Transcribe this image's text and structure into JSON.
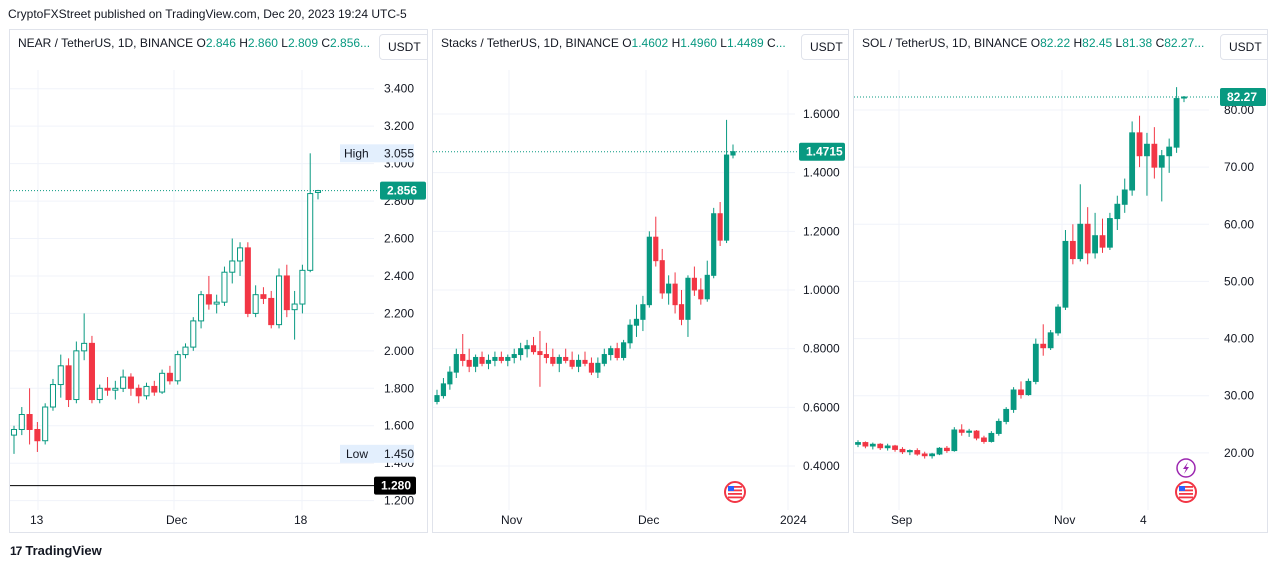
{
  "publisher": "CryptoFXStreet published on TradingView.com, Dec 20, 2023 19:24 UTC-5",
  "brand": "TradingView",
  "colors": {
    "up": "#089981",
    "down": "#f23645",
    "grid": "#f0f3fa",
    "axis_text": "#131722"
  },
  "panels": [
    {
      "legend": {
        "symbol": "NEAR / TetherUS, 1D, BINANCE",
        "o_label": "O",
        "o": "2.846",
        "h_label": "H",
        "h": "2.860",
        "l_label": "L",
        "l": "2.809",
        "c_label": "C",
        "c": "2.856..."
      },
      "currency": "USDT",
      "high_label": "High",
      "high_value": "3.055",
      "low_label": "Low",
      "low_value": "1.450",
      "last_price": "2.856",
      "hline_price": "1.280",
      "x_ticks": [
        "13",
        "Dec",
        "18"
      ],
      "icons": []
    },
    {
      "legend": {
        "symbol": "Stacks / TetherUS, 1D, BINANCE",
        "o_label": "O",
        "o": "1.4602",
        "h_label": "H",
        "h": "1.4960",
        "l_label": "L",
        "l": "1.4489",
        "c_label": "C",
        "c": "..."
      },
      "currency": "USDT",
      "last_price": "1.4715",
      "x_ticks": [
        "Nov",
        "Dec",
        "2024"
      ],
      "icons": [
        "us-flag-icon"
      ]
    },
    {
      "legend": {
        "symbol": "SOL / TetherUS, 1D, BINANCE",
        "o_label": "O",
        "o": "82.22",
        "h_label": "H",
        "h": "82.45",
        "l_label": "L",
        "l": "81.38",
        "c_label": "C",
        "c": "82.27..."
      },
      "currency": "USDT",
      "last_price": "82.27",
      "x_ticks": [
        "Sep",
        "Nov",
        "4"
      ],
      "icons": [
        "lightning-icon",
        "us-flag-icon"
      ]
    }
  ],
  "chart_data": [
    {
      "type": "candlestick",
      "title": "NEAR / TetherUS, 1D, BINANCE",
      "ylim": [
        1.15,
        3.5
      ],
      "y_ticks": [
        1.2,
        1.4,
        1.6,
        1.8,
        2.0,
        2.2,
        2.4,
        2.6,
        2.8,
        3.0,
        3.2,
        3.4
      ],
      "y_tick_labels": [
        "1.200",
        "1.400",
        "1.600",
        "1.800",
        "2.000",
        "2.200",
        "2.400",
        "2.600",
        "2.800",
        "3.000",
        "3.200",
        "3.400"
      ],
      "high": 3.055,
      "low": 1.45,
      "last": 2.856,
      "hline": 1.28,
      "candles": [
        [
          1.55,
          1.6,
          1.45,
          1.58
        ],
        [
          1.58,
          1.7,
          1.55,
          1.66
        ],
        [
          1.66,
          1.8,
          1.5,
          1.58
        ],
        [
          1.58,
          1.62,
          1.46,
          1.52
        ],
        [
          1.52,
          1.72,
          1.5,
          1.7
        ],
        [
          1.7,
          1.85,
          1.68,
          1.82
        ],
        [
          1.82,
          1.98,
          1.75,
          1.92
        ],
        [
          1.92,
          1.96,
          1.7,
          1.74
        ],
        [
          1.74,
          2.05,
          1.72,
          2.0
        ],
        [
          2.0,
          2.2,
          1.95,
          2.04
        ],
        [
          2.04,
          2.08,
          1.72,
          1.74
        ],
        [
          1.74,
          1.82,
          1.72,
          1.8
        ],
        [
          1.8,
          1.86,
          1.76,
          1.79
        ],
        [
          1.79,
          1.84,
          1.74,
          1.8
        ],
        [
          1.8,
          1.9,
          1.78,
          1.86
        ],
        [
          1.86,
          1.88,
          1.76,
          1.8
        ],
        [
          1.8,
          1.82,
          1.72,
          1.76
        ],
        [
          1.76,
          1.83,
          1.74,
          1.81
        ],
        [
          1.81,
          1.84,
          1.76,
          1.78
        ],
        [
          1.78,
          1.9,
          1.77,
          1.88
        ],
        [
          1.88,
          1.92,
          1.82,
          1.84
        ],
        [
          1.84,
          2.0,
          1.82,
          1.98
        ],
        [
          1.98,
          2.04,
          1.96,
          2.02
        ],
        [
          2.02,
          2.18,
          2.0,
          2.16
        ],
        [
          2.16,
          2.32,
          2.12,
          2.3
        ],
        [
          2.3,
          2.4,
          2.22,
          2.25
        ],
        [
          2.25,
          2.3,
          2.2,
          2.26
        ],
        [
          2.26,
          2.45,
          2.24,
          2.42
        ],
        [
          2.42,
          2.6,
          2.36,
          2.48
        ],
        [
          2.48,
          2.58,
          2.4,
          2.55
        ],
        [
          2.55,
          2.58,
          2.18,
          2.2
        ],
        [
          2.2,
          2.35,
          2.18,
          2.3
        ],
        [
          2.3,
          2.34,
          2.25,
          2.28
        ],
        [
          2.28,
          2.32,
          2.12,
          2.14
        ],
        [
          2.14,
          2.44,
          2.12,
          2.4
        ],
        [
          2.4,
          2.46,
          2.18,
          2.22
        ],
        [
          2.22,
          2.32,
          2.06,
          2.25
        ],
        [
          2.25,
          2.46,
          2.2,
          2.43
        ],
        [
          2.43,
          3.055,
          2.42,
          2.84
        ],
        [
          2.846,
          2.86,
          2.809,
          2.856
        ]
      ],
      "x_ticks": [
        "13",
        "Dec",
        "18"
      ]
    },
    {
      "type": "candlestick",
      "title": "Stacks / TetherUS, 1D, BINANCE",
      "ylim": [
        0.25,
        1.75
      ],
      "y_ticks": [
        0.4,
        0.6,
        0.8,
        1.0,
        1.2,
        1.4,
        1.6
      ],
      "y_tick_labels": [
        "0.4000",
        "0.6000",
        "0.8000",
        "1.0000",
        "1.2000",
        "1.4000",
        "1.6000"
      ],
      "last": 1.4715,
      "candles": [
        [
          0.62,
          0.66,
          0.61,
          0.64
        ],
        [
          0.64,
          0.7,
          0.63,
          0.68
        ],
        [
          0.68,
          0.74,
          0.66,
          0.72
        ],
        [
          0.72,
          0.8,
          0.7,
          0.78
        ],
        [
          0.78,
          0.85,
          0.74,
          0.76
        ],
        [
          0.76,
          0.8,
          0.72,
          0.74
        ],
        [
          0.74,
          0.78,
          0.72,
          0.77
        ],
        [
          0.77,
          0.79,
          0.74,
          0.75
        ],
        [
          0.75,
          0.78,
          0.73,
          0.76
        ],
        [
          0.76,
          0.79,
          0.74,
          0.77
        ],
        [
          0.77,
          0.79,
          0.75,
          0.76
        ],
        [
          0.76,
          0.78,
          0.74,
          0.77
        ],
        [
          0.77,
          0.8,
          0.75,
          0.78
        ],
        [
          0.78,
          0.82,
          0.76,
          0.8
        ],
        [
          0.8,
          0.83,
          0.77,
          0.81
        ],
        [
          0.81,
          0.84,
          0.78,
          0.79
        ],
        [
          0.79,
          0.86,
          0.67,
          0.78
        ],
        [
          0.78,
          0.82,
          0.75,
          0.77
        ],
        [
          0.77,
          0.8,
          0.74,
          0.75
        ],
        [
          0.75,
          0.78,
          0.72,
          0.77
        ],
        [
          0.77,
          0.8,
          0.75,
          0.76
        ],
        [
          0.76,
          0.79,
          0.73,
          0.74
        ],
        [
          0.74,
          0.78,
          0.72,
          0.76
        ],
        [
          0.76,
          0.79,
          0.74,
          0.75
        ],
        [
          0.75,
          0.77,
          0.71,
          0.72
        ],
        [
          0.72,
          0.77,
          0.7,
          0.75
        ],
        [
          0.75,
          0.8,
          0.74,
          0.78
        ],
        [
          0.78,
          0.81,
          0.76,
          0.8
        ],
        [
          0.8,
          0.82,
          0.76,
          0.77
        ],
        [
          0.77,
          0.83,
          0.76,
          0.82
        ],
        [
          0.82,
          0.9,
          0.8,
          0.88
        ],
        [
          0.88,
          0.95,
          0.84,
          0.9
        ],
        [
          0.9,
          0.98,
          0.86,
          0.95
        ],
        [
          0.95,
          1.2,
          0.94,
          1.18
        ],
        [
          1.18,
          1.25,
          1.08,
          1.1
        ],
        [
          1.1,
          1.14,
          0.97,
          0.99
        ],
        [
          0.99,
          1.05,
          0.95,
          1.02
        ],
        [
          1.02,
          1.06,
          0.92,
          0.95
        ],
        [
          0.95,
          1.0,
          0.88,
          0.9
        ],
        [
          0.9,
          1.05,
          0.84,
          1.04
        ],
        [
          1.04,
          1.08,
          0.98,
          1.0
        ],
        [
          1.0,
          1.04,
          0.95,
          0.97
        ],
        [
          0.97,
          1.1,
          0.96,
          1.05
        ],
        [
          1.05,
          1.28,
          1.04,
          1.26
        ],
        [
          1.26,
          1.3,
          1.15,
          1.17
        ],
        [
          1.17,
          1.58,
          1.16,
          1.46
        ],
        [
          1.4602,
          1.496,
          1.4489,
          1.4715
        ]
      ],
      "x_ticks": [
        "Nov",
        "Dec",
        "2024"
      ]
    },
    {
      "type": "candlestick",
      "title": "SOL / TetherUS, 1D, BINANCE",
      "ylim": [
        10,
        87
      ],
      "y_ticks": [
        20,
        30,
        40,
        50,
        60,
        70,
        80
      ],
      "y_tick_labels": [
        "20.00",
        "30.00",
        "40.00",
        "50.00",
        "60.00",
        "70.00",
        "80.00"
      ],
      "last": 82.27,
      "candles": [
        [
          21.5,
          22.2,
          21.0,
          21.8
        ],
        [
          21.8,
          22.0,
          20.8,
          21.2
        ],
        [
          21.2,
          21.8,
          20.6,
          21.5
        ],
        [
          21.5,
          21.7,
          20.5,
          20.9
        ],
        [
          20.9,
          21.6,
          20.4,
          21.2
        ],
        [
          21.2,
          21.4,
          20.2,
          20.6
        ],
        [
          20.6,
          21.0,
          19.8,
          20.2
        ],
        [
          20.2,
          20.6,
          19.6,
          20.4
        ],
        [
          20.4,
          20.8,
          19.5,
          19.8
        ],
        [
          19.8,
          20.2,
          19.0,
          19.5
        ],
        [
          19.5,
          20.0,
          19.0,
          19.8
        ],
        [
          19.8,
          21.0,
          19.6,
          20.8
        ],
        [
          20.8,
          21.2,
          20.0,
          20.4
        ],
        [
          20.4,
          24.5,
          20.2,
          24.0
        ],
        [
          24.0,
          25.0,
          23.0,
          23.6
        ],
        [
          23.6,
          24.2,
          22.8,
          23.8
        ],
        [
          23.8,
          24.0,
          22.2,
          22.6
        ],
        [
          22.6,
          23.0,
          21.6,
          22.0
        ],
        [
          22.0,
          23.8,
          21.8,
          23.4
        ],
        [
          23.4,
          26.0,
          23.0,
          25.5
        ],
        [
          25.5,
          28.0,
          25.0,
          27.6
        ],
        [
          27.6,
          31.5,
          27.0,
          31.0
        ],
        [
          31.0,
          32.5,
          29.5,
          30.2
        ],
        [
          30.2,
          33.0,
          30.0,
          32.5
        ],
        [
          32.5,
          40.0,
          32.0,
          39.0
        ],
        [
          39.0,
          42.5,
          37.0,
          38.4
        ],
        [
          38.4,
          41.5,
          38.0,
          41.0
        ],
        [
          41.0,
          46.0,
          40.5,
          45.5
        ],
        [
          45.5,
          59.0,
          45.0,
          57.0
        ],
        [
          57.0,
          60.0,
          53.0,
          54.0
        ],
        [
          54.0,
          67.0,
          53.5,
          60.0
        ],
        [
          60.0,
          63.0,
          53.0,
          55.0
        ],
        [
          55.0,
          62.0,
          54.0,
          58.0
        ],
        [
          58.0,
          61.0,
          55.0,
          56.0
        ],
        [
          56.0,
          62.0,
          55.5,
          61.0
        ],
        [
          61.0,
          65.0,
          59.0,
          63.5
        ],
        [
          63.5,
          68.0,
          62.0,
          66.0
        ],
        [
          66.0,
          78.0,
          65.0,
          76.0
        ],
        [
          76.0,
          79.0,
          70.0,
          72.0
        ],
        [
          72.0,
          76.0,
          65.0,
          74.0
        ],
        [
          74.0,
          77.0,
          68.0,
          70.0
        ],
        [
          70.0,
          73.0,
          64.0,
          72.0
        ],
        [
          72.0,
          75.0,
          69.0,
          73.5
        ],
        [
          73.5,
          84.0,
          72.5,
          82.0
        ],
        [
          82.22,
          82.45,
          81.38,
          82.27
        ]
      ],
      "x_ticks": [
        "Sep",
        "Nov",
        "4"
      ]
    }
  ]
}
